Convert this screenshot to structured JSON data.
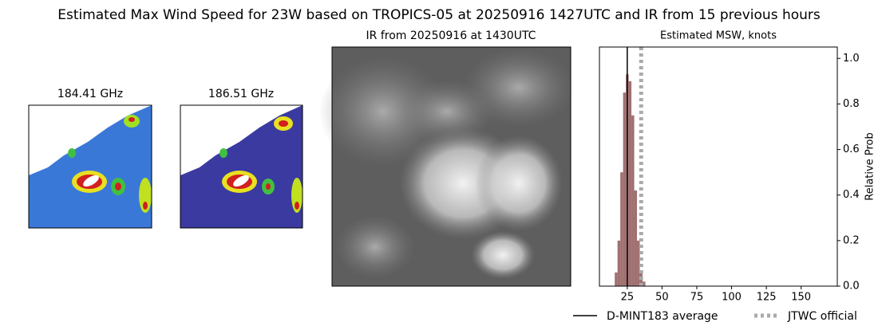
{
  "title": "Estimated Max Wind Speed for 23W based on TROPICS-05 at 20250916 1427UTC and IR from 15 previous hours",
  "images": [
    {
      "title": "184.41 GHz"
    },
    {
      "title": "186.51 GHz"
    },
    {
      "title": "IR from 20250916 at 1430UTC"
    }
  ],
  "chart_data": {
    "type": "histogram",
    "title": "Estimated MSW, knots",
    "y_label": "Relative Prob",
    "bins": [
      16,
      18,
      20,
      22,
      24,
      26,
      28,
      30,
      32,
      34,
      36,
      38
    ],
    "values": [
      0.06,
      0.2,
      0.5,
      0.85,
      0.93,
      0.9,
      0.75,
      0.42,
      0.2,
      0.07,
      0.02
    ],
    "color": "#a07070",
    "xlim": [
      5,
      176
    ],
    "xticks": [
      25,
      50,
      75,
      100,
      125,
      150
    ],
    "ylim": [
      0,
      1.05
    ],
    "yticks": [
      {
        "value": 0,
        "label": "0.0"
      },
      0.2,
      0.4,
      0.6,
      0.8,
      {
        "value": 1,
        "label": "1.0"
      }
    ],
    "y_axis_side": "right",
    "grid": false,
    "reference_lines": [
      {
        "name": "D-MINT183 average",
        "value": 25,
        "color": "#000000",
        "style": "solid"
      },
      {
        "name": "JTWC official",
        "value": 35,
        "color": "#aaaaaa",
        "style": "dotted"
      }
    ],
    "legend": "bottom"
  }
}
